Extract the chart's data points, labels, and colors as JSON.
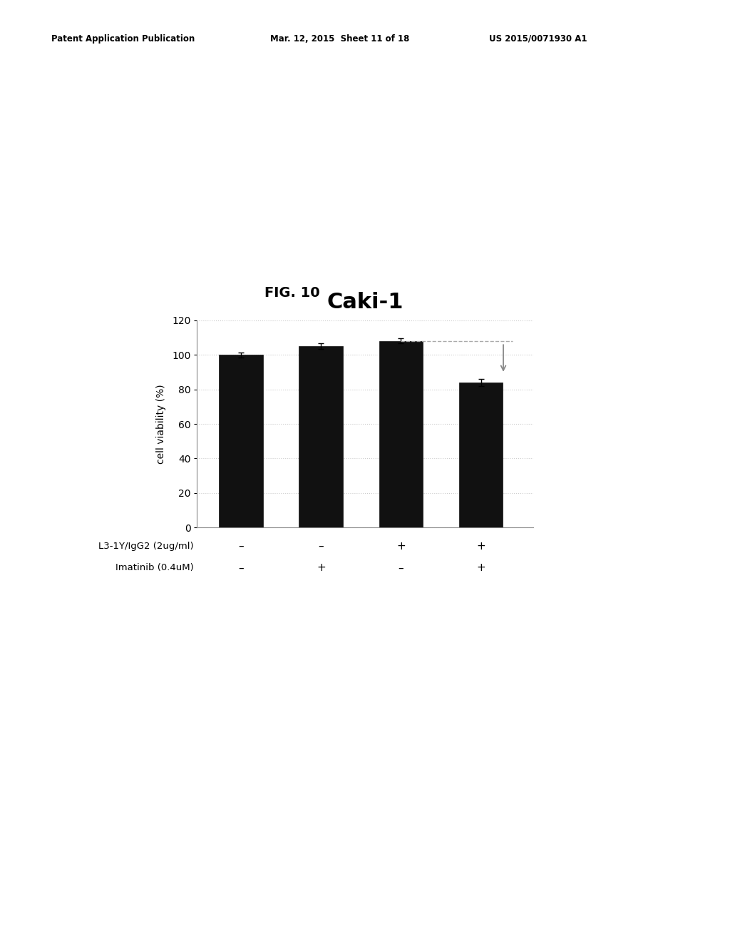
{
  "title": "Caki-1",
  "fig_label": "FIG. 10",
  "ylabel": "cell viability (%)",
  "ylim": [
    0,
    120
  ],
  "yticks": [
    0,
    20,
    40,
    60,
    80,
    100,
    120
  ],
  "bar_values": [
    100,
    105,
    108,
    84
  ],
  "bar_errors": [
    1.5,
    1.5,
    1.5,
    2.0
  ],
  "bar_color": "#111111",
  "bar_width": 0.55,
  "x_positions": [
    0,
    1,
    2,
    3
  ],
  "row1_label": "L3-1Y/IgG2 (2ug/ml)",
  "row2_label": "Imatinib (0.4uM)",
  "row1_signs": [
    "–",
    "–",
    "+",
    "+"
  ],
  "row2_signs": [
    "–",
    "+",
    "–",
    "+"
  ],
  "patent_left": "Patent Application Publication",
  "patent_mid": "Mar. 12, 2015  Sheet 11 of 18",
  "patent_right": "US 2015/0071930 A1",
  "background_color": "#ffffff",
  "arrow_color": "#888888",
  "dashed_line_color": "#aaaaaa",
  "grid_color": "#cccccc"
}
